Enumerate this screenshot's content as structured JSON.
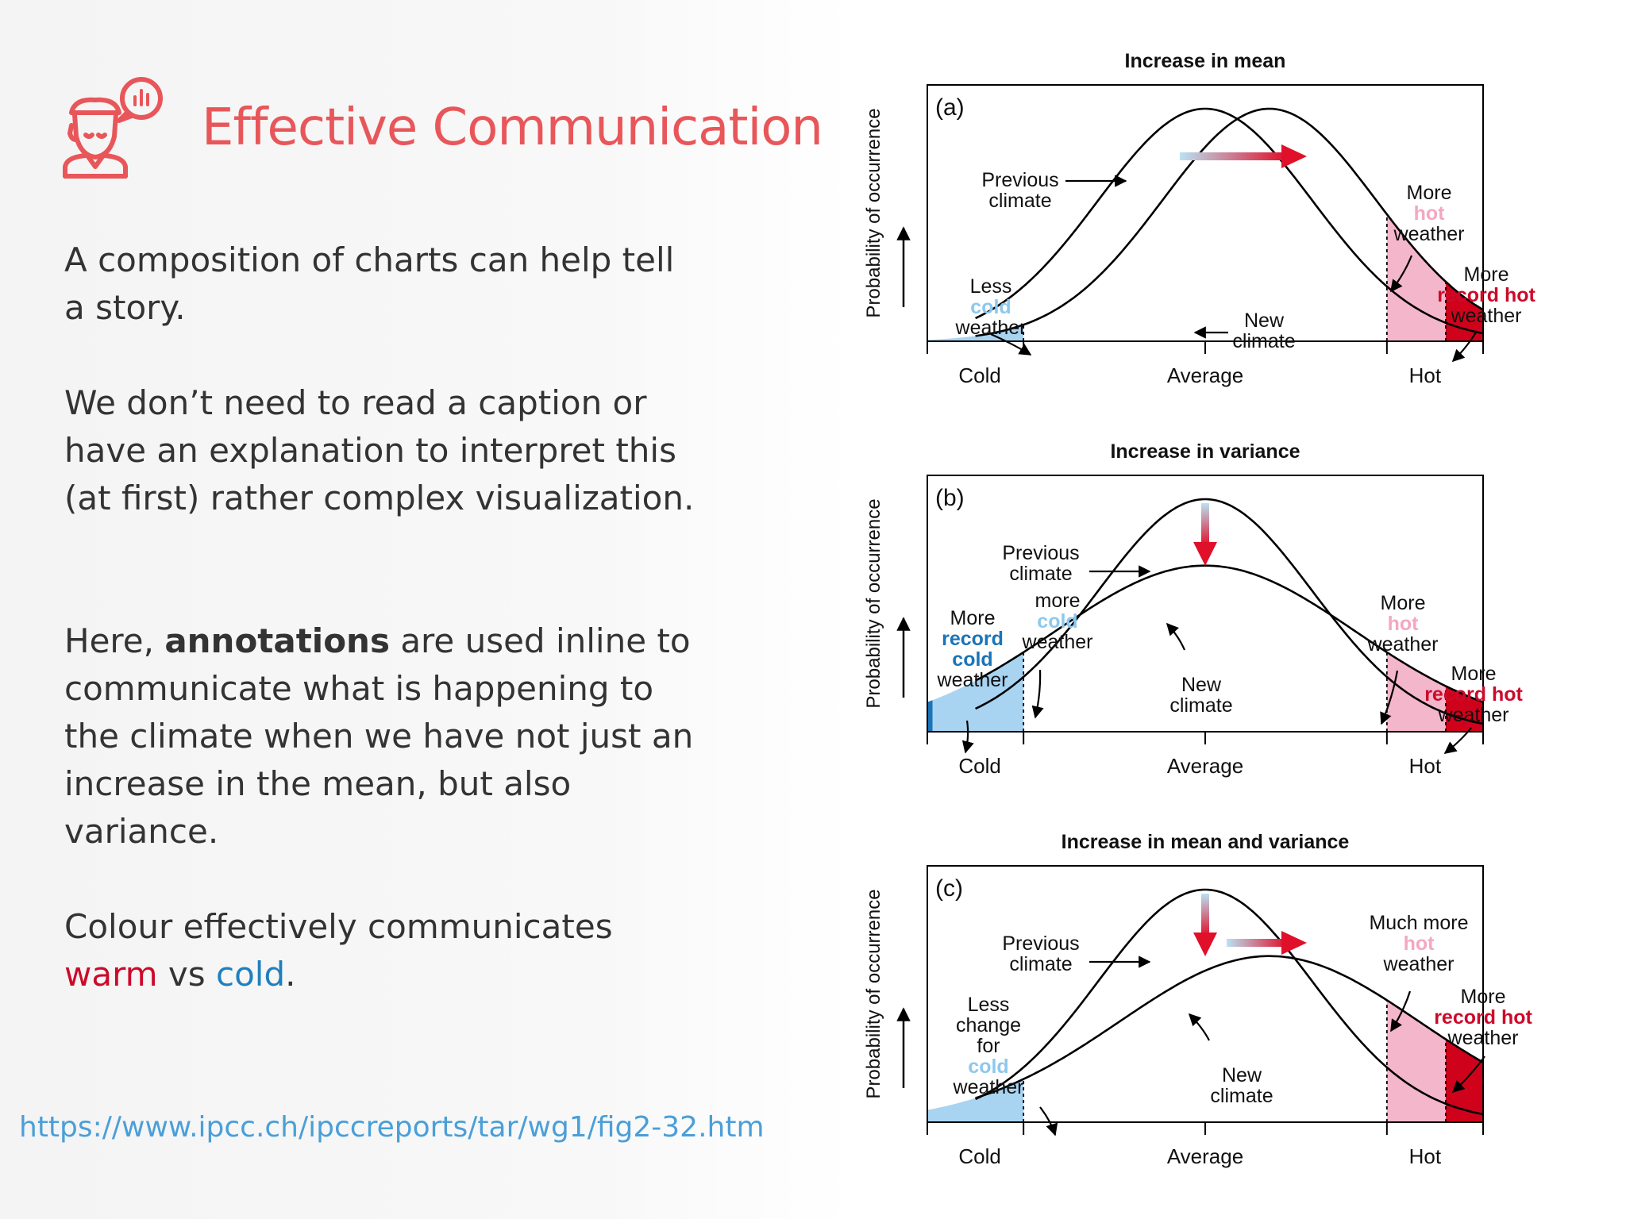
{
  "slide": {
    "title": "Effective Communication",
    "paragraph1": "A composition of charts can help tell a story.",
    "paragraph2": "We don’t need to read a caption or have an explanation to interpret this (at first) rather complex visualization.",
    "paragraph3": {
      "before": "Here, ",
      "bold": "annotations",
      "after": " are used inline to communicate what is happening to the climate when we have not just an increase in the mean, but also variance."
    },
    "paragraph4": {
      "before": "Colour effectively communicates ",
      "warm": "warm",
      "middle": " vs ",
      "cold": "cold",
      "after": "."
    },
    "source_url": "https://www.ipcc.ch/ipccreports/tar/wg1/fig2-32.htm",
    "header_icon": "person-with-chat-bubble-icon",
    "colors": {
      "title": "#e8565a",
      "warm": "#cc0a2a",
      "cold": "#1f7fbf",
      "link": "#4a9fd8",
      "hot_fill": "#f4b6cb",
      "record_hot_fill": "#d0021b",
      "cold_fill": "#a8d4f2",
      "record_cold_fill": "#1a74b8"
    }
  },
  "chart_data": [
    {
      "type": "area",
      "panel": "(a)",
      "title": "Increase in mean",
      "ylabel": "Probability of occurrence",
      "x_ticks": [
        "Cold",
        "Average",
        "Hot"
      ],
      "series": [
        {
          "name": "Previous climate",
          "mean": 0,
          "sd": 1
        },
        {
          "name": "New climate",
          "mean": 0.6,
          "sd": 1
        }
      ],
      "annotations": {
        "previous": [
          "Previous",
          "climate"
        ],
        "new": [
          "New",
          "climate"
        ],
        "cold": [
          "Less",
          "cold",
          "weather"
        ],
        "hot": [
          "More",
          "hot",
          "weather"
        ],
        "record": [
          "More",
          "record hot",
          "weather"
        ]
      }
    },
    {
      "type": "area",
      "panel": "(b)",
      "title": "Increase in variance",
      "ylabel": "Probability of occurrence",
      "x_ticks": [
        "Cold",
        "Average",
        "Hot"
      ],
      "series": [
        {
          "name": "Previous climate",
          "mean": 0,
          "sd": 1
        },
        {
          "name": "New climate",
          "mean": 0,
          "sd": 1.4
        }
      ],
      "annotations": {
        "previous": [
          "Previous",
          "climate"
        ],
        "new": [
          "New",
          "climate"
        ],
        "more_cold": [
          "more",
          "cold",
          "weather"
        ],
        "record_cold": [
          "More",
          "record",
          "cold",
          "weather"
        ],
        "hot": [
          "More",
          "hot",
          "weather"
        ],
        "record": [
          "More",
          "record hot",
          "weather"
        ]
      }
    },
    {
      "type": "area",
      "panel": "(c)",
      "title": "Increase in mean and variance",
      "ylabel": "Probability of occurrence",
      "x_ticks": [
        "Cold",
        "Average",
        "Hot"
      ],
      "series": [
        {
          "name": "Previous climate",
          "mean": 0,
          "sd": 1
        },
        {
          "name": "New climate",
          "mean": 0.6,
          "sd": 1.4
        }
      ],
      "annotations": {
        "previous": [
          "Previous",
          "climate"
        ],
        "new": [
          "New",
          "climate"
        ],
        "cold": [
          "Less",
          "change",
          "for",
          "cold",
          "weather"
        ],
        "hot": [
          "Much more",
          "hot",
          "weather"
        ],
        "record": [
          "More",
          "record hot",
          "weather"
        ]
      }
    }
  ]
}
